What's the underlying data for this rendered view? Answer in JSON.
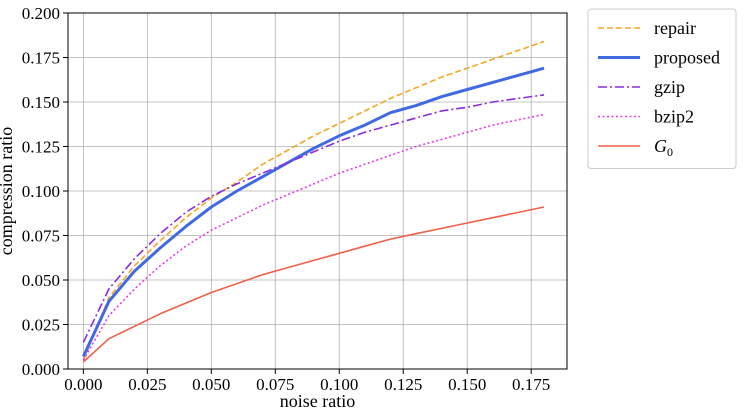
{
  "chart_data": {
    "type": "line",
    "xlabel": "noise ratio",
    "ylabel": "compression ratio",
    "xlim": [
      -0.006,
      0.189
    ],
    "ylim": [
      0.0,
      0.2
    ],
    "x_ticks": [
      0.0,
      0.025,
      0.05,
      0.075,
      0.1,
      0.125,
      0.15,
      0.175
    ],
    "x_tick_labels": [
      "0.000",
      "0.025",
      "0.050",
      "0.075",
      "0.100",
      "0.125",
      "0.150",
      "0.175"
    ],
    "y_ticks": [
      0.0,
      0.025,
      0.05,
      0.075,
      0.1,
      0.125,
      0.15,
      0.175,
      0.2
    ],
    "y_tick_labels": [
      "0.000",
      "0.025",
      "0.050",
      "0.075",
      "0.100",
      "0.125",
      "0.150",
      "0.175",
      "0.200"
    ],
    "grid": true,
    "legend_position": "outside-right",
    "x": [
      0.0,
      0.01,
      0.02,
      0.03,
      0.04,
      0.05,
      0.06,
      0.07,
      0.08,
      0.09,
      0.1,
      0.11,
      0.12,
      0.13,
      0.14,
      0.15,
      0.16,
      0.17,
      0.18
    ],
    "series": [
      {
        "name": "repair",
        "color": "#f5a623",
        "dash": "dashed",
        "width": 1.6,
        "values": [
          0.005,
          0.04,
          0.058,
          0.072,
          0.085,
          0.096,
          0.105,
          0.115,
          0.123,
          0.131,
          0.138,
          0.145,
          0.152,
          0.158,
          0.164,
          0.169,
          0.174,
          0.179,
          0.184
        ]
      },
      {
        "name": "proposed",
        "color": "#4169e1",
        "dash": "solid",
        "width": 3,
        "values": [
          0.007,
          0.038,
          0.055,
          0.068,
          0.08,
          0.091,
          0.1,
          0.108,
          0.116,
          0.124,
          0.131,
          0.137,
          0.144,
          0.148,
          0.153,
          0.157,
          0.161,
          0.165,
          0.169
        ]
      },
      {
        "name": "gzip",
        "color": "#8a2be2",
        "dash": "dashdot",
        "width": 1.6,
        "values": [
          0.015,
          0.045,
          0.062,
          0.076,
          0.088,
          0.097,
          0.104,
          0.11,
          0.116,
          0.122,
          0.128,
          0.133,
          0.137,
          0.141,
          0.145,
          0.147,
          0.15,
          0.152,
          0.154
        ]
      },
      {
        "name": "bzip2",
        "color": "#e83ae8",
        "dash": "dotted",
        "width": 1.6,
        "values": [
          0.005,
          0.03,
          0.045,
          0.058,
          0.069,
          0.078,
          0.085,
          0.092,
          0.098,
          0.104,
          0.11,
          0.115,
          0.12,
          0.125,
          0.129,
          0.133,
          0.137,
          0.14,
          0.143
        ]
      },
      {
        "name": "G0",
        "color": "#f0604a",
        "dash": "solid",
        "width": 1.6,
        "values": [
          0.004,
          0.017,
          0.024,
          0.031,
          0.037,
          0.043,
          0.048,
          0.053,
          0.057,
          0.061,
          0.065,
          0.069,
          0.073,
          0.076,
          0.079,
          0.082,
          0.085,
          0.088,
          0.091
        ]
      }
    ]
  }
}
